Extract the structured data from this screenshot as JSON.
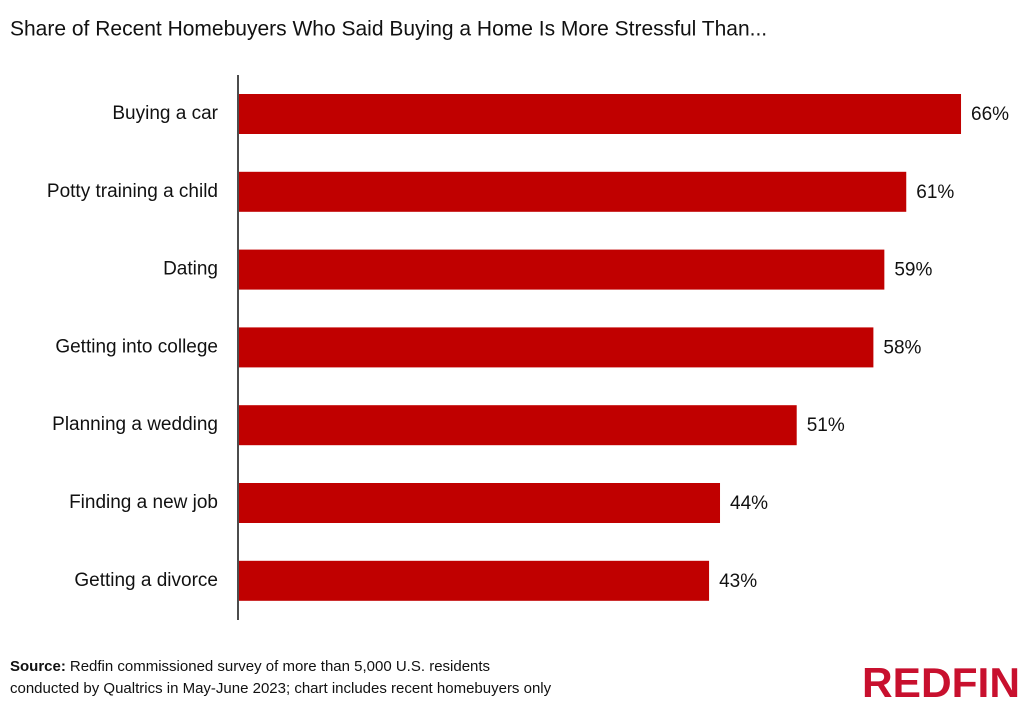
{
  "chart_data": {
    "type": "bar",
    "orientation": "horizontal",
    "title": "Share of Recent Homebuyers Who Said Buying a Home Is More Stressful Than...",
    "categories": [
      "Buying a car",
      "Potty training a child",
      "Dating",
      "Getting into college",
      "Planning a wedding",
      "Finding a new job",
      "Getting a divorce"
    ],
    "values": [
      66,
      61,
      59,
      58,
      51,
      44,
      43
    ],
    "value_labels": [
      "66%",
      "61%",
      "59%",
      "58%",
      "51%",
      "44%",
      "43%"
    ],
    "color": "#c00000"
  },
  "source": {
    "label": "Source:",
    "lines": [
      "Redfin commissioned survey of more than 5,000 U.S. residents",
      "conducted by Qualtrics in May-June 2023; chart includes recent homebuyers only"
    ]
  },
  "logo": "REDFIN"
}
